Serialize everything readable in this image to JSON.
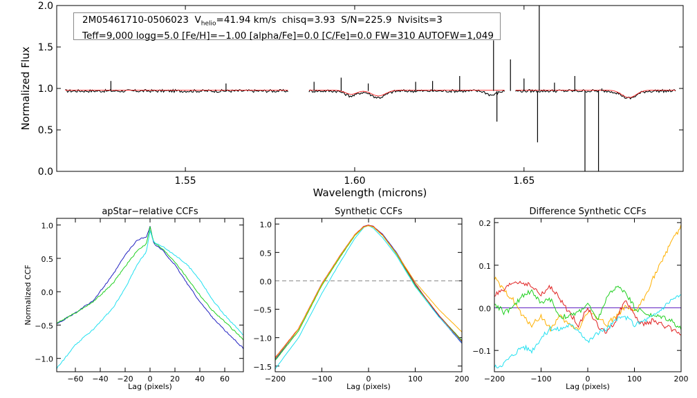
{
  "header": {
    "star_id": "2M05461710-0506023",
    "vhelio_prefix": "V",
    "vhelio_sub": "helio",
    "vhelio_value": "=41.94 km/s",
    "chisq": "chisq=3.93",
    "snr": "S/N=225.9",
    "nvisits": "Nvisits=3",
    "line2": "Teff=9,000 logg=5.0 [Fe/H]=−1.00 [alpha/Fe]=0.0 [C/Fe]=0.0 FW=310 AUTOFW=1,049"
  },
  "colors": {
    "spectrum": "#000000",
    "model": "#ff2020",
    "blue": "#2020c0",
    "green": "#20d020",
    "cyan": "#20e0f0",
    "red": "#e02020",
    "orange": "#ffb000",
    "purple": "#6020c0"
  },
  "chart_data": [
    {
      "id": "spectrum",
      "type": "line",
      "title": "",
      "xlabel": "Wavelength (microns)",
      "ylabel": "Normalized Flux",
      "xlim": [
        1.512,
        1.697
      ],
      "ylim": [
        0.0,
        2.0
      ],
      "xticks": [
        1.55,
        1.6,
        1.65
      ],
      "xtick_labels": [
        "1.55",
        "1.60",
        "1.65"
      ],
      "yticks": [
        0.0,
        0.5,
        1.0,
        1.5,
        2.0
      ],
      "ytick_labels": [
        "0.0",
        "0.5",
        "1.0",
        "1.5",
        "2.0"
      ],
      "segments": [
        [
          1.5145,
          1.5805
        ],
        [
          1.5865,
          1.6445
        ],
        [
          1.6475,
          1.695
        ]
      ],
      "series": [
        {
          "name": "observed",
          "color": "#000000",
          "baseline": 0.97,
          "spikes": [
            [
              1.528,
              1.09
            ],
            [
              1.562,
              1.06
            ],
            [
              1.588,
              1.08
            ],
            [
              1.596,
              1.13
            ],
            [
              1.604,
              1.06
            ],
            [
              1.618,
              1.08
            ],
            [
              1.623,
              1.09
            ],
            [
              1.631,
              1.15
            ],
            [
              1.641,
              1.58
            ],
            [
              1.642,
              0.6
            ],
            [
              1.646,
              1.35
            ],
            [
              1.65,
              1.12
            ],
            [
              1.654,
              0.35
            ],
            [
              1.6545,
              2.0
            ],
            [
              1.659,
              1.07
            ],
            [
              1.665,
              1.15
            ],
            [
              1.668,
              -0.1
            ],
            [
              1.672,
              0.0
            ],
            [
              1.673,
              1.0
            ]
          ],
          "dips": [
            [
              1.599,
              0.91,
              0.0025
            ],
            [
              1.607,
              0.89,
              0.003
            ],
            [
              1.6405,
              0.92,
              0.002
            ],
            [
              1.681,
              0.88,
              0.003
            ]
          ]
        },
        {
          "name": "model",
          "color": "#ff2020",
          "baseline": 0.98,
          "dips": [
            [
              1.599,
              0.93,
              0.0025
            ],
            [
              1.607,
              0.91,
              0.003
            ],
            [
              1.681,
              0.89,
              0.003
            ]
          ]
        }
      ]
    },
    {
      "id": "apstar",
      "type": "line",
      "title": "apStar−relative CCFs",
      "xlabel": "Lag (pixels)",
      "ylabel": "Normalized CCF",
      "xlim": [
        -75,
        75
      ],
      "ylim": [
        -1.2,
        1.1
      ],
      "xticks": [
        -60,
        -40,
        -20,
        0,
        20,
        40,
        60
      ],
      "xtick_labels": [
        "−60",
        "−40",
        "−20",
        "0",
        "20",
        "40",
        "60"
      ],
      "yticks": [
        -1.0,
        -0.5,
        0.0,
        0.5,
        1.0
      ],
      "ytick_labels": [
        "−1.0",
        "−0.5",
        "0.0",
        "0.5",
        "1.0"
      ],
      "series": [
        {
          "name": "visit 1",
          "color": "#2020c0",
          "x": [
            -75,
            -60,
            -45,
            -30,
            -20,
            -10,
            -3,
            0,
            3,
            10,
            20,
            30,
            40,
            50,
            60,
            75
          ],
          "y": [
            -0.48,
            -0.32,
            -0.12,
            0.25,
            0.55,
            0.78,
            0.82,
            0.98,
            0.72,
            0.62,
            0.4,
            0.12,
            -0.15,
            -0.38,
            -0.58,
            -0.85
          ]
        },
        {
          "name": "visit 2",
          "color": "#20d020",
          "x": [
            -75,
            -60,
            -45,
            -30,
            -20,
            -10,
            -3,
            0,
            3,
            10,
            20,
            30,
            40,
            50,
            60,
            75
          ],
          "y": [
            -0.47,
            -0.32,
            -0.14,
            0.12,
            0.38,
            0.62,
            0.72,
            0.97,
            0.74,
            0.64,
            0.45,
            0.2,
            -0.05,
            -0.28,
            -0.45,
            -0.72
          ]
        },
        {
          "name": "visit 3",
          "color": "#20e0f0",
          "x": [
            -75,
            -60,
            -45,
            -30,
            -20,
            -10,
            -3,
            0,
            3,
            10,
            20,
            30,
            40,
            50,
            60,
            75
          ],
          "y": [
            -1.15,
            -0.8,
            -0.55,
            -0.25,
            0.05,
            0.42,
            0.6,
            0.92,
            0.74,
            0.68,
            0.55,
            0.4,
            0.18,
            -0.12,
            -0.35,
            -0.65
          ]
        }
      ]
    },
    {
      "id": "synthetic",
      "type": "line",
      "title": "Synthetic CCFs",
      "xlabel": "Lag (pixels)",
      "ylabel": "",
      "xlim": [
        -200,
        200
      ],
      "ylim": [
        -1.6,
        1.1
      ],
      "xticks": [
        -200,
        -100,
        0,
        100,
        200
      ],
      "xtick_labels": [
        "−200",
        "−100",
        "0",
        "100",
        "200"
      ],
      "yticks": [
        -1.5,
        -1.0,
        -0.5,
        0.0,
        0.5,
        1.0
      ],
      "ytick_labels": [
        "−1.5",
        "−1.0",
        "−0.5",
        "0.0",
        "0.5",
        "1.0"
      ],
      "hline": 0.0,
      "series": [
        {
          "name": "s1",
          "color": "#2020c0",
          "x": [
            -200,
            -150,
            -100,
            -60,
            -30,
            -10,
            0,
            10,
            30,
            60,
            100,
            150,
            200
          ],
          "y": [
            -1.38,
            -0.85,
            -0.05,
            0.45,
            0.8,
            0.96,
            0.98,
            0.96,
            0.82,
            0.5,
            -0.05,
            -0.62,
            -1.1
          ]
        },
        {
          "name": "s2",
          "color": "#20d020",
          "x": [
            -200,
            -150,
            -100,
            -60,
            -30,
            -10,
            0,
            10,
            30,
            60,
            100,
            150,
            200
          ],
          "y": [
            -1.4,
            -0.88,
            -0.08,
            0.43,
            0.79,
            0.95,
            0.97,
            0.95,
            0.8,
            0.47,
            -0.08,
            -0.6,
            -1.05
          ]
        },
        {
          "name": "s3",
          "color": "#20e0f0",
          "x": [
            -200,
            -150,
            -100,
            -60,
            -30,
            -10,
            0,
            10,
            30,
            60,
            100,
            150,
            200
          ],
          "y": [
            -1.55,
            -1.0,
            -0.22,
            0.34,
            0.74,
            0.94,
            0.97,
            0.93,
            0.76,
            0.44,
            -0.1,
            -0.63,
            -1.08
          ]
        },
        {
          "name": "s4",
          "color": "#e02020",
          "x": [
            -200,
            -150,
            -100,
            -60,
            -30,
            -10,
            0,
            10,
            30,
            60,
            100,
            150,
            200
          ],
          "y": [
            -1.35,
            -0.84,
            -0.05,
            0.46,
            0.81,
            0.96,
            0.98,
            0.96,
            0.81,
            0.48,
            -0.06,
            -0.6,
            -1.07
          ]
        },
        {
          "name": "s5",
          "color": "#ffb000",
          "x": [
            -200,
            -150,
            -100,
            -60,
            -30,
            -10,
            0,
            10,
            30,
            60,
            100,
            150,
            200
          ],
          "y": [
            -1.36,
            -0.85,
            -0.06,
            0.45,
            0.8,
            0.95,
            0.97,
            0.95,
            0.8,
            0.48,
            -0.02,
            -0.5,
            -0.9
          ]
        }
      ]
    },
    {
      "id": "difference",
      "type": "line",
      "title": "Difference Synthetic CCFs",
      "xlabel": "Lag (pixels)",
      "ylabel": "",
      "xlim": [
        -200,
        200
      ],
      "ylim": [
        -0.15,
        0.21
      ],
      "xticks": [
        -200,
        -100,
        0,
        100,
        200
      ],
      "xtick_labels": [
        "−200",
        "−100",
        "0",
        "100",
        "200"
      ],
      "yticks": [
        -0.1,
        0.0,
        0.1,
        0.2
      ],
      "ytick_labels": [
        "−0.1",
        "0.0",
        "0.1",
        "0.2"
      ],
      "series": [
        {
          "name": "zero",
          "color": "#6020c0",
          "x": [
            -200,
            200
          ],
          "y": [
            0.0,
            0.0
          ]
        },
        {
          "name": "orange",
          "color": "#ffb000",
          "x": [
            -200,
            -180,
            -160,
            -140,
            -120,
            -100,
            -80,
            -60,
            -40,
            -20,
            0,
            20,
            40,
            60,
            80,
            100,
            120,
            140,
            160,
            180,
            200
          ],
          "y": [
            0.07,
            0.04,
            0.02,
            -0.02,
            -0.04,
            -0.02,
            -0.05,
            -0.02,
            -0.04,
            -0.05,
            -0.01,
            -0.02,
            -0.04,
            -0.02,
            0.0,
            -0.01,
            0.02,
            0.07,
            0.11,
            0.16,
            0.19
          ]
        },
        {
          "name": "red",
          "color": "#e02020",
          "x": [
            -200,
            -180,
            -160,
            -140,
            -120,
            -100,
            -80,
            -60,
            -40,
            -20,
            0,
            20,
            40,
            60,
            80,
            100,
            120,
            140,
            160,
            180,
            200
          ],
          "y": [
            0.03,
            0.04,
            0.06,
            0.06,
            0.05,
            0.03,
            0.05,
            0.02,
            -0.01,
            -0.04,
            0.0,
            -0.04,
            -0.06,
            -0.03,
            0.02,
            -0.02,
            -0.04,
            -0.03,
            -0.04,
            -0.05,
            -0.06
          ]
        },
        {
          "name": "green",
          "color": "#20d020",
          "x": [
            -200,
            -180,
            -160,
            -140,
            -120,
            -100,
            -80,
            -60,
            -40,
            -20,
            0,
            20,
            40,
            60,
            80,
            100,
            120,
            140,
            160,
            180,
            200
          ],
          "y": [
            0.01,
            -0.01,
            0.0,
            0.03,
            0.04,
            0.01,
            0.02,
            -0.02,
            -0.02,
            -0.01,
            0.01,
            -0.03,
            0.02,
            0.05,
            0.04,
            0.0,
            -0.01,
            -0.02,
            -0.02,
            -0.03,
            -0.05
          ]
        },
        {
          "name": "cyan",
          "color": "#20e0f0",
          "x": [
            -200,
            -180,
            -160,
            -140,
            -120,
            -100,
            -80,
            -60,
            -40,
            -20,
            0,
            20,
            40,
            60,
            80,
            100,
            120,
            140,
            160,
            180,
            200
          ],
          "y": [
            -0.14,
            -0.13,
            -0.11,
            -0.09,
            -0.1,
            -0.07,
            -0.05,
            -0.05,
            -0.04,
            -0.05,
            -0.08,
            -0.06,
            -0.05,
            -0.03,
            -0.02,
            -0.04,
            -0.03,
            -0.02,
            0.0,
            0.02,
            0.03
          ]
        }
      ]
    }
  ]
}
